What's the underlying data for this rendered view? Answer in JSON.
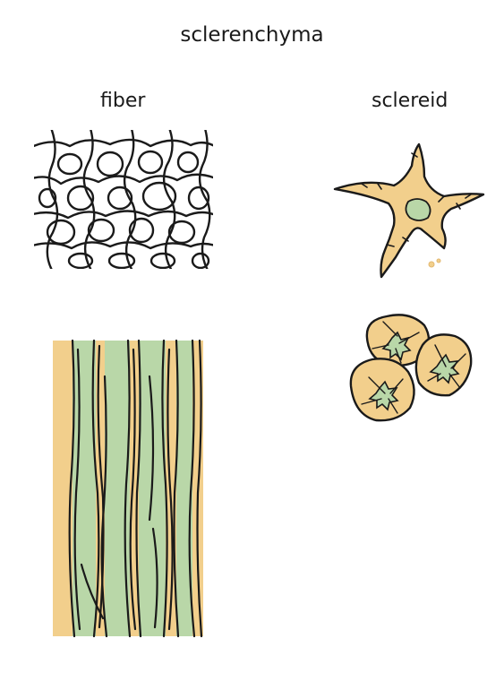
{
  "title": "sclerenchyma",
  "columns": {
    "left": "fiber",
    "right": "sclereid"
  },
  "colors": {
    "ink": "#1a1a1a",
    "tan": "#f2cf8c",
    "green": "#b9d7a8",
    "paper": "#ffffff"
  }
}
